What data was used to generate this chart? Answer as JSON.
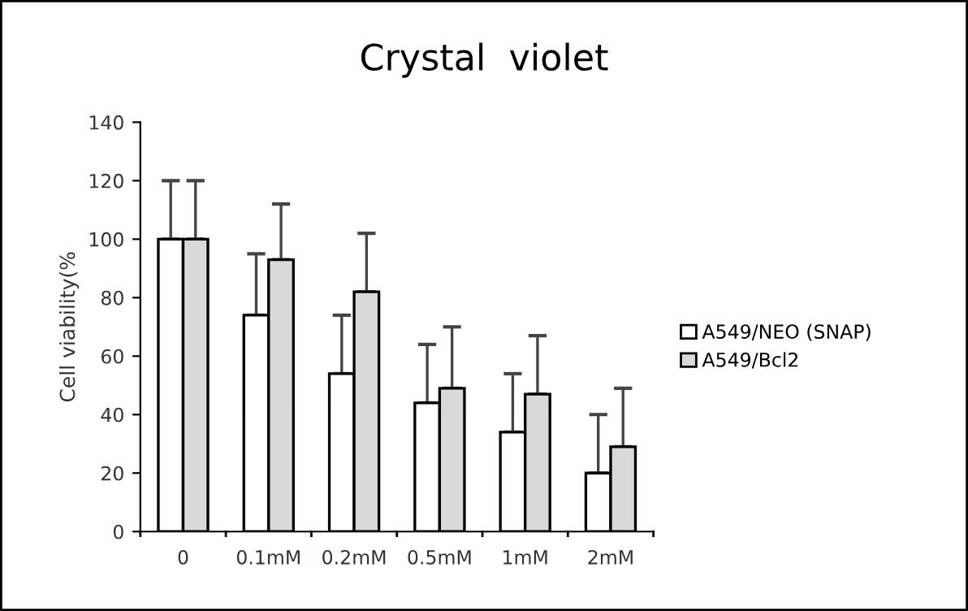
{
  "chart_data": {
    "type": "bar",
    "title": "Crystal  violet",
    "ylabel": "Cell viability(%",
    "categories": [
      "0",
      "0.1mM",
      "0.2mM",
      "0.5mM",
      "1mM",
      "2mM"
    ],
    "series": [
      {
        "name": "A549/NEO (SNAP)",
        "color": "#ffffff",
        "values": [
          100,
          74,
          54,
          44,
          34,
          20
        ],
        "errors": [
          [
            100,
            120
          ],
          [
            74,
            95
          ],
          [
            54,
            74
          ],
          [
            44,
            64
          ],
          [
            34,
            54
          ],
          [
            20,
            40
          ]
        ]
      },
      {
        "name": "A549/Bcl2",
        "color": "#d9d9d9",
        "values": [
          100,
          93,
          82,
          49,
          47,
          29
        ],
        "errors": [
          [
            100,
            120
          ],
          [
            93,
            112
          ],
          [
            82,
            102
          ],
          [
            49,
            70
          ],
          [
            47,
            67
          ],
          [
            29,
            49
          ]
        ]
      }
    ],
    "ylim": [
      0,
      140
    ],
    "yticks": [
      0,
      20,
      40,
      60,
      80,
      100,
      120,
      140
    ],
    "grid": false,
    "legend": "right"
  }
}
